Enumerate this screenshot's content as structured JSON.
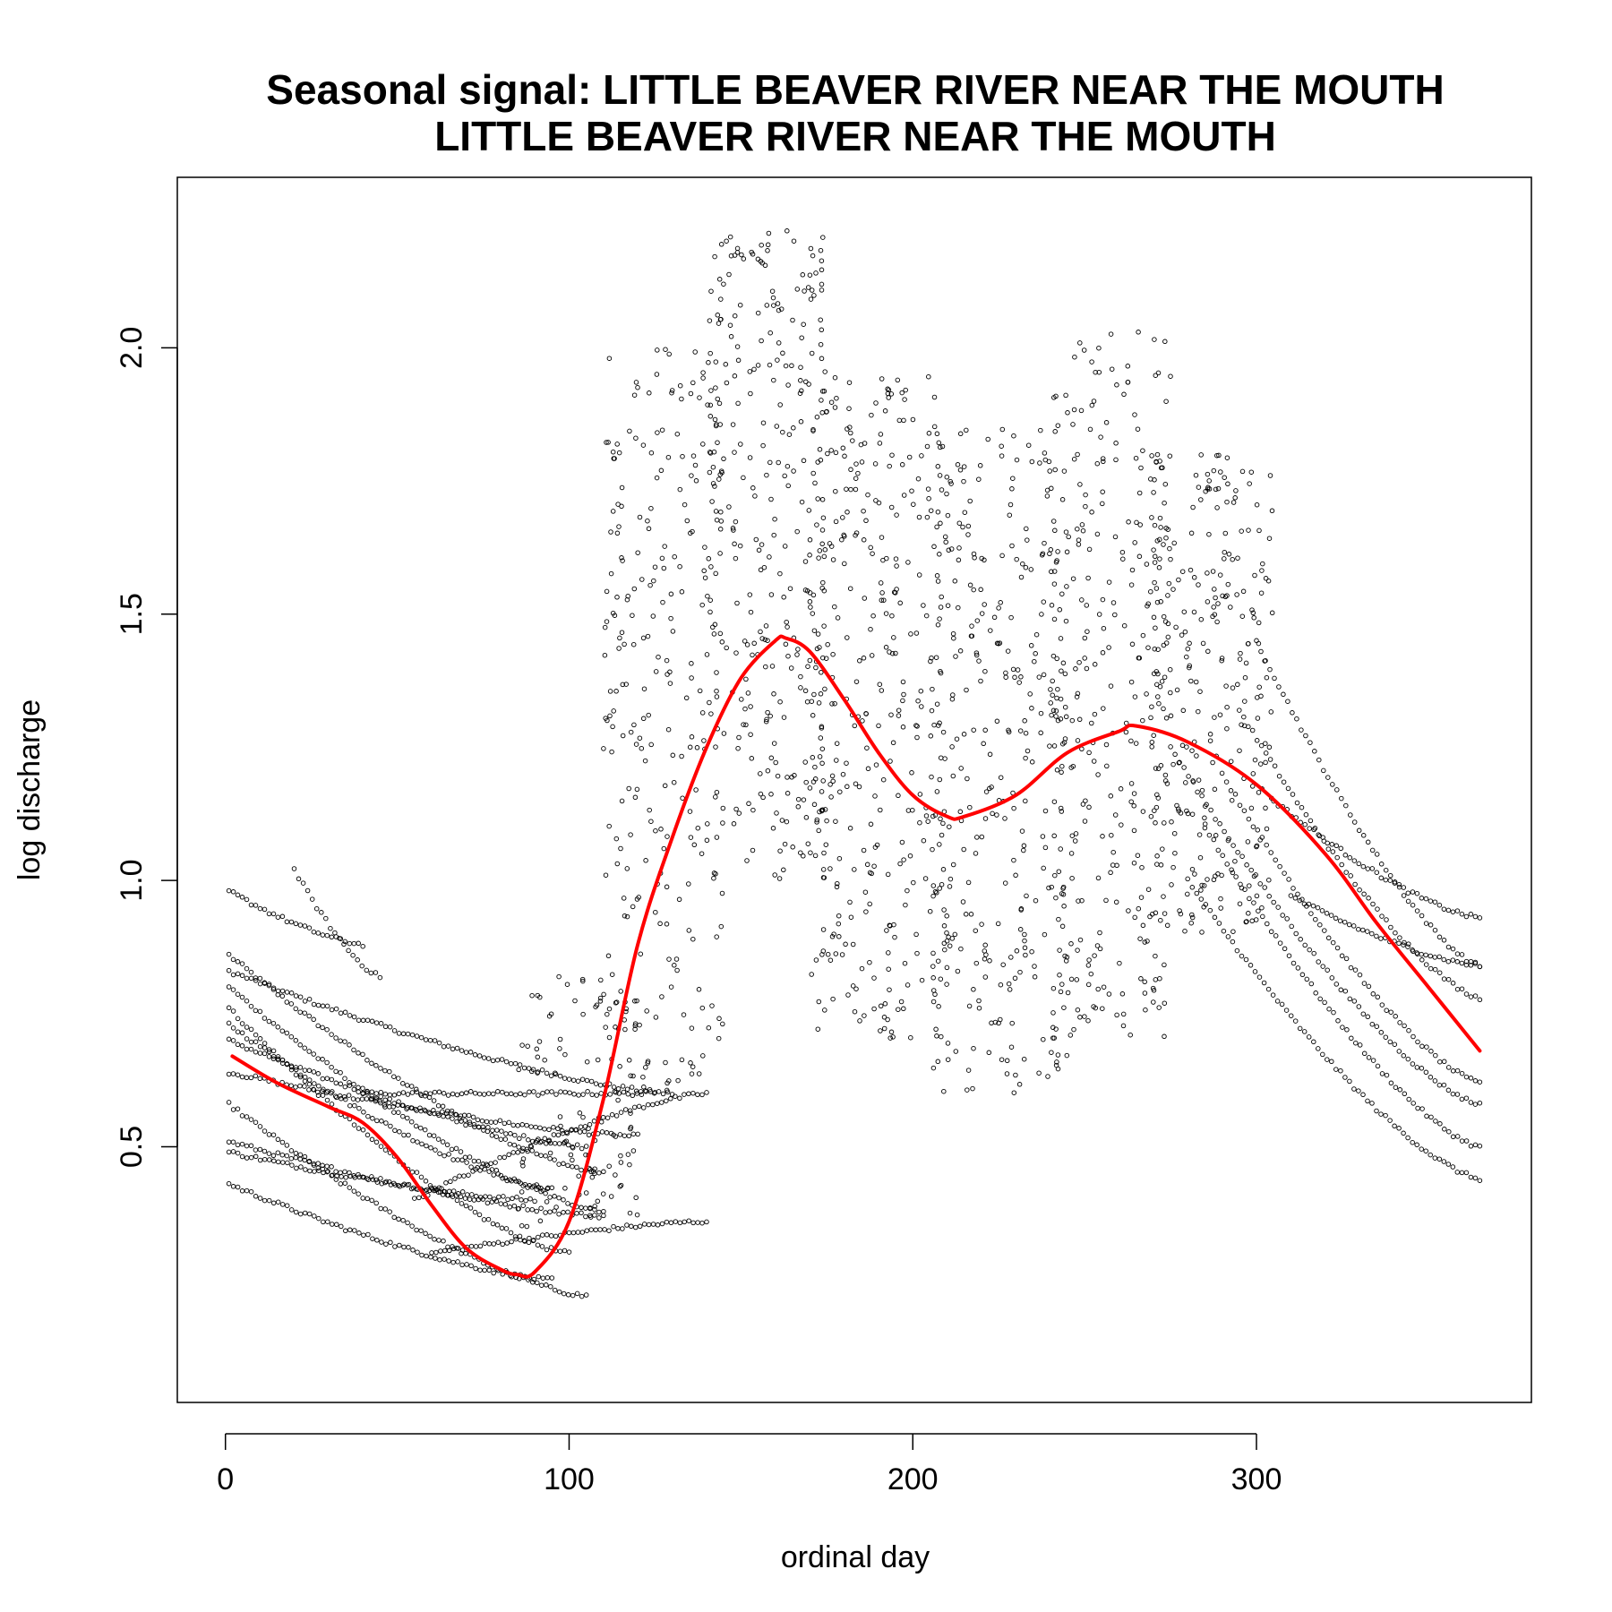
{
  "chart_data": {
    "type": "scatter",
    "title": "Seasonal signal: LITTLE BEAVER RIVER NEAR THE MOUTH",
    "subtitle": "LITTLE BEAVER RIVER NEAR THE MOUTH",
    "xlabel": "ordinal day",
    "ylabel": "log discharge",
    "xlim": [
      0,
      380
    ],
    "ylim": [
      0.0,
      2.37
    ],
    "x_ticks": [
      0,
      100,
      200,
      300
    ],
    "x_tick_labels": [
      "0",
      "100",
      "200",
      "300"
    ],
    "y_ticks": [
      0.5,
      1.0,
      1.5,
      2.0
    ],
    "y_tick_labels": [
      "0.5",
      "1.0",
      "1.5",
      "2.0"
    ],
    "grid": false,
    "legend": "none",
    "colors": {
      "points": "#000000",
      "smooth": "#ff0000"
    },
    "series": [
      {
        "kind": "points",
        "decay_curves": [
          {
            "x0": 1,
            "y0": 0.86,
            "x1": 110,
            "y1": 0.45
          },
          {
            "x0": 1,
            "y0": 0.83,
            "x1": 130,
            "y1": 0.6
          },
          {
            "x0": 1,
            "y0": 0.8,
            "x1": 110,
            "y1": 0.38
          },
          {
            "x0": 1,
            "y0": 0.76,
            "x1": 100,
            "y1": 0.3
          },
          {
            "x0": 1,
            "y0": 0.73,
            "x1": 95,
            "y1": 0.42
          },
          {
            "x0": 1,
            "y0": 0.7,
            "x1": 105,
            "y1": 0.5
          },
          {
            "x0": 1,
            "y0": 0.64,
            "x1": 120,
            "y1": 0.52
          },
          {
            "x0": 1,
            "y0": 0.58,
            "x1": 105,
            "y1": 0.22
          },
          {
            "x0": 1,
            "y0": 0.51,
            "x1": 110,
            "y1": 0.37
          },
          {
            "x0": 1,
            "y0": 0.49,
            "x1": 90,
            "y1": 0.4
          },
          {
            "x0": 1,
            "y0": 0.43,
            "x1": 95,
            "y1": 0.25
          },
          {
            "x0": 1,
            "y0": 0.98,
            "x1": 40,
            "y1": 0.88
          },
          {
            "x0": 20,
            "y0": 1.02,
            "x1": 45,
            "y1": 0.82
          },
          {
            "x0": 60,
            "y0": 0.3,
            "x1": 140,
            "y1": 0.36
          },
          {
            "x0": 55,
            "y0": 0.4,
            "x1": 140,
            "y1": 0.6
          },
          {
            "x0": 40,
            "y0": 0.6,
            "x1": 125,
            "y1": 0.6
          },
          {
            "x0": 300,
            "y0": 1.45,
            "x1": 365,
            "y1": 0.84
          },
          {
            "x0": 295,
            "y0": 1.32,
            "x1": 365,
            "y1": 0.78
          },
          {
            "x0": 290,
            "y0": 1.2,
            "x1": 365,
            "y1": 0.62
          },
          {
            "x0": 285,
            "y0": 1.1,
            "x1": 365,
            "y1": 0.5
          },
          {
            "x0": 280,
            "y0": 1.0,
            "x1": 365,
            "y1": 0.44
          },
          {
            "x0": 310,
            "y0": 0.97,
            "x1": 365,
            "y1": 0.84
          },
          {
            "x0": 275,
            "y0": 1.25,
            "x1": 365,
            "y1": 0.58
          },
          {
            "x0": 305,
            "y0": 1.15,
            "x1": 365,
            "y1": 0.93
          }
        ],
        "scatter_clouds": [
          {
            "x_range": [
              110,
              145
            ],
            "y_range": [
              0.6,
              2.0
            ],
            "count": 260
          },
          {
            "x_range": [
              140,
              175
            ],
            "y_range": [
              1.0,
              2.22
            ],
            "count": 320
          },
          {
            "x_range": [
              170,
              210
            ],
            "y_range": [
              0.7,
              1.95
            ],
            "count": 330
          },
          {
            "x_range": [
              205,
              245
            ],
            "y_range": [
              0.6,
              1.85
            ],
            "count": 330
          },
          {
            "x_range": [
              240,
              275
            ],
            "y_range": [
              0.7,
              2.03
            ],
            "count": 300
          },
          {
            "x_range": [
              270,
              305
            ],
            "y_range": [
              0.9,
              1.8
            ],
            "count": 260
          },
          {
            "x_range": [
              85,
              120
            ],
            "y_range": [
              0.35,
              0.82
            ],
            "count": 110
          }
        ]
      },
      {
        "kind": "smooth",
        "x": [
          2,
          15,
          30,
          40,
          50,
          60,
          70,
          80,
          85,
          90,
          100,
          110,
          120,
          130,
          140,
          150,
          160,
          163,
          170,
          180,
          190,
          200,
          210,
          215,
          230,
          245,
          260,
          265,
          280,
          300,
          320,
          335,
          350,
          365
        ],
        "y": [
          0.67,
          0.62,
          0.575,
          0.545,
          0.48,
          0.39,
          0.31,
          0.27,
          0.26,
          0.265,
          0.36,
          0.59,
          0.88,
          1.08,
          1.25,
          1.38,
          1.45,
          1.455,
          1.43,
          1.34,
          1.24,
          1.16,
          1.12,
          1.12,
          1.16,
          1.24,
          1.28,
          1.29,
          1.26,
          1.18,
          1.05,
          0.92,
          0.8,
          0.68
        ]
      }
    ]
  }
}
